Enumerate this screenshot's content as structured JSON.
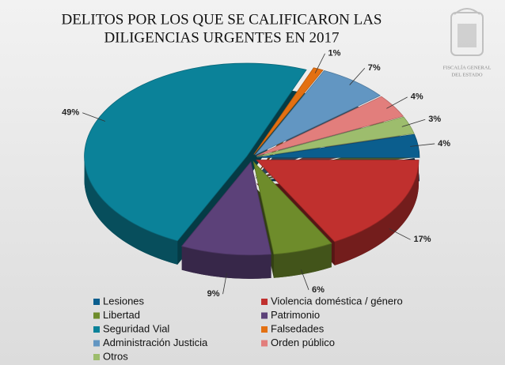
{
  "chart_data": {
    "type": "pie3d",
    "title": [
      "DELITOS POR LOS QUE SE CALIFICARON LAS",
      "DILIGENCIAS URGENTES EN 2017"
    ],
    "categories": [
      "Lesiones",
      "Violencia doméstica / género",
      "Libertad",
      "Patrimonio",
      "Seguridad Vial",
      "Falsedades",
      "Administración Justicia",
      "Orden público",
      "Otros"
    ],
    "values": [
      4,
      17,
      6,
      9,
      49,
      1,
      7,
      4,
      3
    ],
    "value_labels": [
      "4%",
      "17%",
      "6%",
      "9%",
      "49%",
      "1%",
      "7%",
      "4%",
      "3%"
    ],
    "colors": [
      "#0b5e8e",
      "#c0302e",
      "#6e8c2b",
      "#5c4179",
      "#0b8299",
      "#e37012",
      "#6296c2",
      "#e27e7c",
      "#9dbd6d"
    ],
    "legend": "bottom"
  },
  "branding": {
    "lines": [
      "FISCALÍA GENERAL",
      "DEL ESTADO"
    ]
  }
}
